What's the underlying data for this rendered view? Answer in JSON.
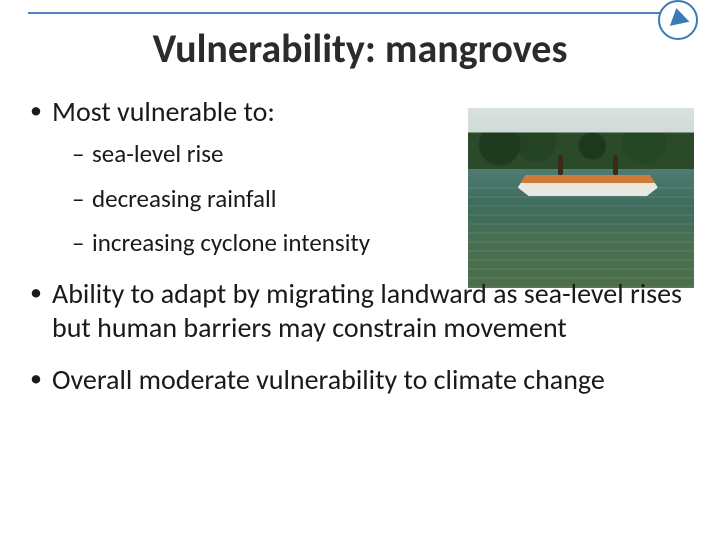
{
  "slide": {
    "title": "Vulnerability: mangroves",
    "accent_color": "#4f81bd",
    "text_color": "#1a1a1a",
    "title_fontsize": 40,
    "bullet_fontsize": 28,
    "sub_fontsize": 25,
    "bullets": [
      {
        "text": "Most vulnerable to:",
        "sub": [
          "sea-level rise",
          "decreasing rainfall",
          "increasing cyclone intensity"
        ]
      },
      {
        "text": "Ability to adapt by migrating landward as sea-level rises but human barriers may constrain movement"
      },
      {
        "text": "Overall moderate vulnerability to climate change"
      }
    ],
    "photo": {
      "description": "mangrove-shoreline-with-boat",
      "sky_color": "#d8e1dd",
      "tree_color": "#244324",
      "water_color": "#4f7b71",
      "boat_color": "#e8e8e0"
    }
  }
}
